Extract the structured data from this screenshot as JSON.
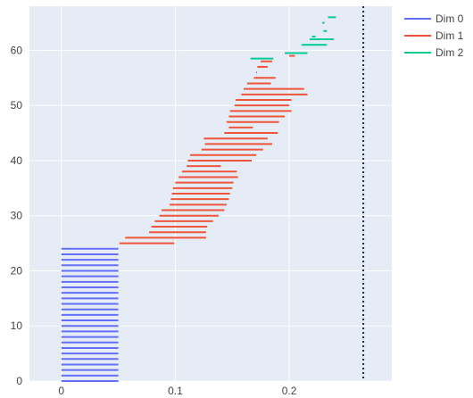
{
  "chart_data": {
    "type": "barcode",
    "title": "",
    "xlabel": "",
    "ylabel": "",
    "xlim": [
      -0.028,
      0.29
    ],
    "ylim": [
      0,
      68
    ],
    "x_ticks": [
      {
        "value": 0,
        "label": "0"
      },
      {
        "value": 0.1,
        "label": "0.1"
      },
      {
        "value": 0.2,
        "label": "0.2"
      }
    ],
    "y_ticks": [
      {
        "value": 0,
        "label": "0"
      },
      {
        "value": 10,
        "label": "10"
      },
      {
        "value": 20,
        "label": "20"
      },
      {
        "value": 30,
        "label": "30"
      },
      {
        "value": 40,
        "label": "40"
      },
      {
        "value": 50,
        "label": "50"
      },
      {
        "value": 60,
        "label": "60"
      }
    ],
    "infinity_line_x": 0.265,
    "grid": true,
    "legend_position": "top-right",
    "colors": {
      "plot_background": "#E5ECF6",
      "grid": "#ffffff",
      "infinity_line": "#1f2d4d"
    },
    "series": [
      {
        "name": "Dim 0",
        "color": "#636EFA",
        "bars": [
          [
            0,
            0,
            0.05
          ],
          [
            1,
            0,
            0.05
          ],
          [
            2,
            0,
            0.05
          ],
          [
            3,
            0,
            0.05
          ],
          [
            4,
            0,
            0.05
          ],
          [
            5,
            0,
            0.05
          ],
          [
            6,
            0,
            0.05
          ],
          [
            7,
            0,
            0.05
          ],
          [
            8,
            0,
            0.05
          ],
          [
            9,
            0,
            0.05
          ],
          [
            10,
            0,
            0.05
          ],
          [
            11,
            0,
            0.05
          ],
          [
            12,
            0,
            0.05
          ],
          [
            13,
            0,
            0.05
          ],
          [
            14,
            0,
            0.05
          ],
          [
            15,
            0,
            0.05
          ],
          [
            16,
            0,
            0.05
          ],
          [
            17,
            0,
            0.05
          ],
          [
            18,
            0,
            0.05
          ],
          [
            19,
            0,
            0.05
          ],
          [
            20,
            0,
            0.05
          ],
          [
            21,
            0,
            0.05
          ],
          [
            22,
            0,
            0.05
          ],
          [
            23,
            0,
            0.05
          ],
          [
            24,
            0,
            0.05
          ]
        ]
      },
      {
        "name": "Dim 1",
        "color": "#EF553B",
        "bars": [
          [
            25,
            0.051,
            0.099
          ],
          [
            26,
            0.056,
            0.127
          ],
          [
            27,
            0.077,
            0.127
          ],
          [
            28,
            0.079,
            0.128
          ],
          [
            29,
            0.082,
            0.133
          ],
          [
            30,
            0.086,
            0.138
          ],
          [
            31,
            0.088,
            0.143
          ],
          [
            32,
            0.095,
            0.145
          ],
          [
            33,
            0.096,
            0.147
          ],
          [
            34,
            0.097,
            0.148
          ],
          [
            35,
            0.098,
            0.15
          ],
          [
            36,
            0.1,
            0.151
          ],
          [
            37,
            0.103,
            0.155
          ],
          [
            38,
            0.106,
            0.154
          ],
          [
            39,
            0.11,
            0.14
          ],
          [
            40,
            0.111,
            0.167
          ],
          [
            41,
            0.113,
            0.171
          ],
          [
            42,
            0.123,
            0.177
          ],
          [
            43,
            0.126,
            0.185
          ],
          [
            44,
            0.125,
            0.181
          ],
          [
            45,
            0.143,
            0.19
          ],
          [
            46,
            0.147,
            0.168
          ],
          [
            47,
            0.145,
            0.191
          ],
          [
            48,
            0.147,
            0.196
          ],
          [
            49,
            0.148,
            0.202
          ],
          [
            50,
            0.152,
            0.2
          ],
          [
            51,
            0.153,
            0.202
          ],
          [
            52,
            0.158,
            0.216
          ],
          [
            53,
            0.16,
            0.213
          ],
          [
            54,
            0.163,
            0.184
          ],
          [
            55,
            0.169,
            0.188
          ],
          [
            56,
            0.171,
            0.17
          ],
          [
            57,
            0.172,
            0.181
          ],
          [
            58,
            0.175,
            0.185
          ],
          [
            59,
            0.2,
            0.205
          ]
        ]
      },
      {
        "name": "Dim 2",
        "color": "#00CC96",
        "bars": [
          [
            58.5,
            0.166,
            0.186
          ],
          [
            59.5,
            0.196,
            0.216
          ],
          [
            61,
            0.211,
            0.233
          ],
          [
            62,
            0.218,
            0.239
          ],
          [
            62.5,
            0.22,
            0.223
          ],
          [
            63.5,
            0.23,
            0.233
          ],
          [
            65,
            0.229,
            0.231
          ],
          [
            66,
            0.234,
            0.241
          ]
        ]
      }
    ]
  }
}
